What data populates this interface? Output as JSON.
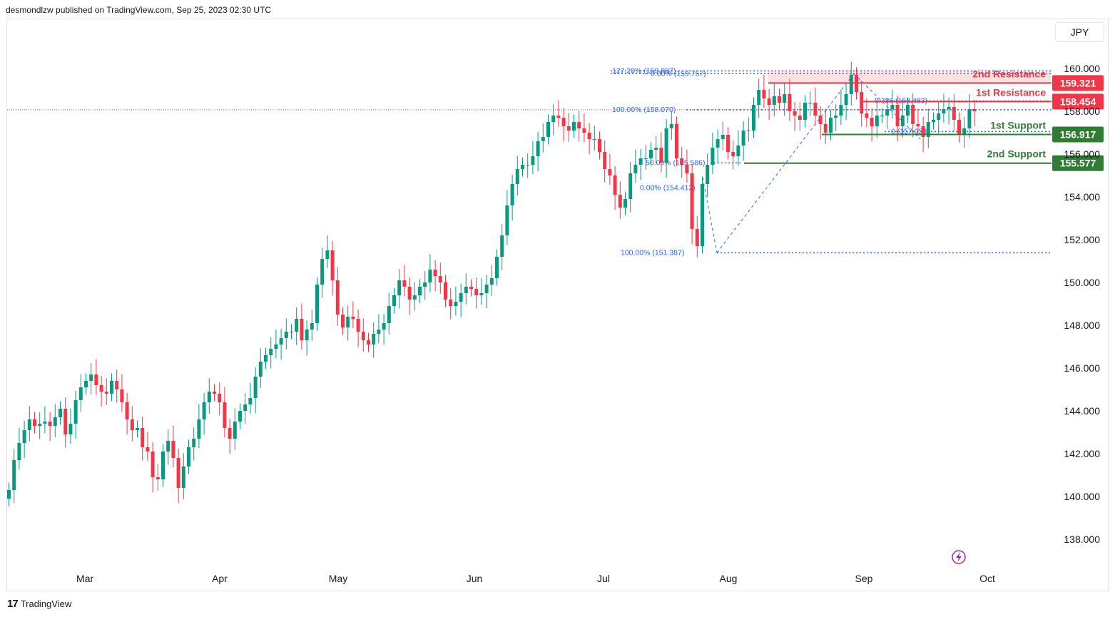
{
  "header": {
    "publisher": "desmondlzw published on TradingView.com, Sep 25, 2023 02:30 UTC"
  },
  "currency_button": "JPY",
  "footer": {
    "brand": "TradingView"
  },
  "colors": {
    "up": "#089981",
    "down": "#f23645",
    "fib": "#2962ff",
    "resistance": "#f23645",
    "support": "#2e7d32",
    "zone": "#fcd8da"
  },
  "chart_data": {
    "type": "candlestick",
    "ylim": [
      136.8,
      161.2
    ],
    "y_ticks": [
      "138.000",
      "140.000",
      "142.000",
      "144.000",
      "146.000",
      "148.000",
      "150.000",
      "152.000",
      "154.000",
      "156.000",
      "158.000",
      "160.000"
    ],
    "x_labels": [
      "Mar",
      "Apr",
      "May",
      "Jun",
      "Jul",
      "Aug",
      "Sep",
      "Oct"
    ],
    "last_price": 158.07,
    "levels": [
      {
        "name": "2nd Resistance",
        "value": 159.321,
        "label": "159.321",
        "kind": "resistance"
      },
      {
        "name": "1st Resistance",
        "value": 158.454,
        "label": "158.454",
        "kind": "resistance"
      },
      {
        "name": "1st Support",
        "value": 156.917,
        "label": "156.917",
        "kind": "support"
      },
      {
        "name": "2nd Support",
        "value": 155.577,
        "label": "155.577",
        "kind": "support"
      }
    ],
    "fib_labels": [
      {
        "text": "127.20% (159.887)",
        "value": 159.887
      },
      {
        "text": "0.00% (159.757)",
        "value": 159.757
      },
      {
        "text": "100.00% (158.070)",
        "value": 158.07
      },
      {
        "text": "50.00% (155.586)",
        "value": 155.586
      },
      {
        "text": "0.00% (154.412)",
        "value": 154.412
      },
      {
        "text": "100.00% (151.387)",
        "value": 151.387
      },
      {
        "text": "0.786 (158.483)",
        "value": 158.483
      },
      {
        "text": "0 (157.053)",
        "value": 157.053
      }
    ],
    "closes": [
      140.3,
      141.7,
      142.5,
      143.1,
      143.6,
      143.3,
      143.4,
      143.5,
      143.3,
      143.7,
      144.1,
      142.9,
      143.4,
      144.5,
      145.1,
      145.4,
      145.7,
      145.2,
      144.9,
      144.8,
      145.4,
      145.0,
      144.4,
      143.6,
      143.1,
      143.2,
      142.3,
      142.1,
      140.9,
      140.8,
      142.1,
      142.6,
      141.8,
      140.4,
      141.4,
      142.3,
      142.7,
      143.6,
      144.4,
      144.9,
      144.8,
      144.4,
      143.2,
      142.7,
      143.5,
      144.0,
      144.3,
      144.6,
      145.6,
      146.3,
      146.6,
      146.9,
      147.1,
      147.4,
      147.7,
      147.7,
      148.3,
      147.3,
      147.8,
      148.1,
      149.9,
      151.1,
      151.5,
      150.1,
      148.5,
      147.9,
      148.4,
      148.3,
      147.7,
      147.3,
      147.1,
      147.6,
      147.8,
      148.1,
      148.9,
      149.4,
      150.1,
      149.8,
      149.2,
      149.4,
      149.8,
      150.0,
      150.6,
      150.3,
      150.0,
      149.2,
      148.9,
      149.1,
      149.5,
      149.8,
      149.7,
      149.4,
      149.5,
      149.9,
      150.2,
      151.2,
      152.2,
      153.6,
      154.6,
      155.3,
      155.5,
      155.5,
      155.9,
      156.6,
      156.8,
      157.5,
      157.8,
      157.7,
      157.3,
      157.1,
      157.5,
      157.2,
      157.0,
      156.7,
      156.7,
      156.1,
      155.3,
      155.0,
      154.1,
      153.5,
      153.9,
      155.1,
      155.5,
      155.8,
      155.8,
      156.2,
      156.3,
      155.6,
      157.2,
      157.4,
      155.8,
      155.5,
      155.1,
      152.5,
      151.7,
      154.6,
      155.5,
      156.3,
      156.7,
      156.9,
      156.1,
      155.9,
      156.4,
      157.1,
      157.1,
      158.3,
      159.0,
      158.6,
      158.3,
      158.7,
      158.4,
      158.8,
      158.0,
      157.8,
      157.6,
      158.4,
      158.4,
      157.8,
      157.4,
      157.0,
      157.7,
      157.8,
      158.3,
      158.8,
      159.7,
      158.9,
      157.9,
      157.7,
      157.3,
      157.8,
      157.8,
      158.1,
      158.3,
      157.3,
      157.8,
      158.3,
      157.4,
      157.3,
      156.8,
      157.5,
      157.6,
      157.9,
      158.1,
      158.2,
      157.6,
      156.9,
      157.2,
      158.1,
      158.0
    ]
  }
}
